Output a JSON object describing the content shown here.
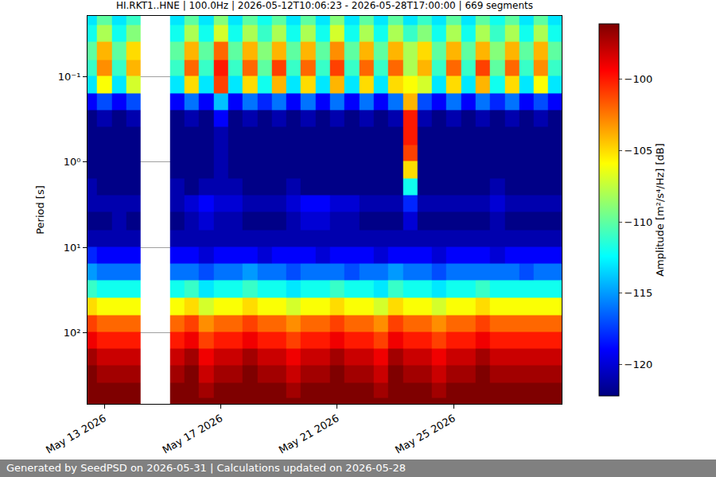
{
  "chart_data": {
    "type": "heatmap",
    "title": "HI.RKT1..HNE | 100.0Hz | 2026-05-12T10:06:23 - 2026-05-28T17:00:00 | 669 segments",
    "y_label": "Period [s]",
    "colorbar_label": "Amplitude [m²/s⁴/Hz] [dB]",
    "color": "jet",
    "log": "y",
    "grid": true,
    "x": [
      "2026-05-12 12:00",
      "2026-05-13 00:00",
      "2026-05-13 12:00",
      "2026-05-14 00:00",
      "2026-05-14 12:00",
      "2026-05-15 00:00",
      "2026-05-15 12:00",
      "2026-05-16 00:00",
      "2026-05-16 12:00",
      "2026-05-17 00:00",
      "2026-05-17 12:00",
      "2026-05-18 00:00",
      "2026-05-18 12:00",
      "2026-05-19 00:00",
      "2026-05-19 12:00",
      "2026-05-20 00:00",
      "2026-05-20 12:00",
      "2026-05-21 00:00",
      "2026-05-21 12:00",
      "2026-05-22 00:00",
      "2026-05-22 12:00",
      "2026-05-23 00:00",
      "2026-05-23 12:00",
      "2026-05-24 00:00",
      "2026-05-24 12:00",
      "2026-05-25 00:00",
      "2026-05-25 12:00",
      "2026-05-26 00:00",
      "2026-05-26 12:00",
      "2026-05-27 00:00",
      "2026-05-27 12:00",
      "2026-05-28 00:00",
      "2026-05-28 12:00"
    ],
    "y": [
      0.02,
      0.03,
      0.05,
      0.08,
      0.12,
      0.2,
      0.3,
      0.5,
      0.8,
      1.2,
      2,
      3,
      5,
      8,
      12,
      20,
      30,
      50,
      80,
      120,
      200,
      300,
      500,
      690
    ],
    "cells": [
      [
        -113,
        -110,
        -113,
        -111,
        null,
        null,
        -113,
        -110,
        -113,
        -109,
        -113,
        -110,
        -112,
        -110,
        -113,
        -110,
        -113,
        -109,
        -113,
        -110,
        -113,
        -110,
        -113,
        -111,
        -113,
        -110,
        -113,
        -110,
        -112,
        -110,
        -113,
        -110,
        -113
      ],
      [
        -112,
        -108,
        -112,
        -109,
        null,
        null,
        -112,
        -108,
        -112,
        -107,
        -112,
        -108,
        -111,
        -108,
        -112,
        -108,
        -112,
        -107,
        -112,
        -108,
        -112,
        -108,
        -111,
        -109,
        -112,
        -108,
        -112,
        -108,
        -111,
        -108,
        -112,
        -108,
        -112
      ],
      [
        -110,
        -104,
        -110,
        -105,
        null,
        null,
        -110,
        -104,
        -110,
        -102,
        -110,
        -104,
        -109,
        -104,
        -110,
        -104,
        -110,
        -103,
        -110,
        -104,
        -110,
        -104,
        -108,
        -105,
        -110,
        -104,
        -110,
        -104,
        -109,
        -104,
        -110,
        -104,
        -110
      ],
      [
        -111,
        -103,
        -111,
        -104,
        null,
        null,
        -111,
        -102,
        -111,
        -100,
        -111,
        -102,
        -110,
        -101,
        -111,
        -102,
        -111,
        -101,
        -111,
        -102,
        -111,
        -102,
        -108,
        -104,
        -111,
        -102,
        -111,
        -101,
        -110,
        -102,
        -111,
        -103,
        -111
      ],
      [
        -113,
        -106,
        -113,
        -107,
        null,
        null,
        -113,
        -105,
        -113,
        -101,
        -113,
        -105,
        -112,
        -104,
        -113,
        -105,
        -113,
        -104,
        -113,
        -105,
        -113,
        -105,
        -106,
        -107,
        -113,
        -105,
        -113,
        -104,
        -112,
        -105,
        -113,
        -106,
        -113
      ],
      [
        -119,
        -117,
        -119,
        -117,
        null,
        null,
        -119,
        -116,
        -119,
        -114,
        -119,
        -116,
        -118,
        -116,
        -119,
        -116,
        -119,
        -116,
        -119,
        -116,
        -119,
        -116,
        -104,
        -117,
        -119,
        -116,
        -119,
        -116,
        -118,
        -116,
        -119,
        -117,
        -119
      ],
      [
        -122,
        -121,
        -122,
        -121,
        null,
        null,
        -122,
        -121,
        -122,
        -119,
        -122,
        -121,
        -122,
        -121,
        -122,
        -121,
        -122,
        -121,
        -122,
        -121,
        -122,
        -121,
        -100,
        -121,
        -122,
        -121,
        -122,
        -121,
        -122,
        -121,
        -122,
        -121,
        -122
      ],
      [
        -122,
        -122,
        -122,
        -122,
        null,
        null,
        -122,
        -122,
        -122,
        -121,
        -122,
        -122,
        -122,
        -122,
        -122,
        -122,
        -122,
        -122,
        -122,
        -122,
        -122,
        -122,
        -100,
        -122,
        -122,
        -122,
        -122,
        -122,
        -122,
        -122,
        -122,
        -122,
        -122
      ],
      [
        -122,
        -122,
        -122,
        -122,
        null,
        null,
        -122,
        -122,
        -122,
        -121,
        -122,
        -122,
        -122,
        -122,
        -122,
        -122,
        -122,
        -122,
        -122,
        -122,
        -122,
        -122,
        -101,
        -122,
        -122,
        -122,
        -122,
        -122,
        -122,
        -122,
        -122,
        -122,
        -122
      ],
      [
        -122,
        -122,
        -122,
        -122,
        null,
        null,
        -122,
        -122,
        -122,
        -121,
        -122,
        -122,
        -122,
        -122,
        -122,
        -122,
        -122,
        -122,
        -122,
        -122,
        -122,
        -122,
        -105,
        -122,
        -122,
        -122,
        -122,
        -122,
        -122,
        -122,
        -122,
        -122,
        -122
      ],
      [
        -121,
        -122,
        -122,
        -122,
        null,
        null,
        -121,
        -122,
        -121,
        -121,
        -121,
        -122,
        -122,
        -122,
        -121,
        -122,
        -122,
        -122,
        -122,
        -122,
        -122,
        -122,
        -112,
        -122,
        -122,
        -122,
        -122,
        -122,
        -121,
        -122,
        -122,
        -122,
        -122
      ],
      [
        -121,
        -121,
        -121,
        -121,
        null,
        null,
        -121,
        -120,
        -119,
        -120,
        -120,
        -121,
        -121,
        -121,
        -120,
        -119,
        -119,
        -120,
        -120,
        -121,
        -121,
        -121,
        -118,
        -121,
        -121,
        -121,
        -121,
        -121,
        -120,
        -121,
        -121,
        -121,
        -121
      ],
      [
        -122,
        -122,
        -121,
        -122,
        null,
        null,
        -122,
        -121,
        -120,
        -121,
        -121,
        -122,
        -122,
        -122,
        -121,
        -120,
        -120,
        -121,
        -121,
        -122,
        -122,
        -122,
        -120,
        -122,
        -122,
        -122,
        -122,
        -122,
        -121,
        -122,
        -122,
        -122,
        -122
      ],
      [
        -121,
        -121,
        -121,
        -121,
        null,
        null,
        -121,
        -121,
        -121,
        -121,
        -121,
        -121,
        -121,
        -121,
        -121,
        -121,
        -121,
        -121,
        -121,
        -121,
        -121,
        -121,
        -121,
        -121,
        -121,
        -121,
        -121,
        -121,
        -121,
        -121,
        -121,
        -121,
        -121
      ],
      [
        -118,
        -119,
        -119,
        -119,
        null,
        null,
        -119,
        -119,
        -120,
        -119,
        -119,
        -119,
        -120,
        -119,
        -119,
        -119,
        -120,
        -119,
        -119,
        -119,
        -120,
        -119,
        -119,
        -119,
        -120,
        -119,
        -119,
        -119,
        -120,
        -119,
        -119,
        -119,
        -119
      ],
      [
        -115,
        -116,
        -116,
        -116,
        null,
        null,
        -116,
        -116,
        -117,
        -116,
        -116,
        -115,
        -116,
        -116,
        -117,
        -116,
        -116,
        -116,
        -117,
        -116,
        -116,
        -115,
        -116,
        -116,
        -117,
        -116,
        -116,
        -116,
        -116,
        -116,
        -117,
        -116,
        -116
      ],
      [
        -111,
        -112,
        -112,
        -112,
        null,
        null,
        -112,
        -111,
        -113,
        -112,
        -112,
        -111,
        -112,
        -112,
        -113,
        -112,
        -112,
        -111,
        -112,
        -112,
        -113,
        -111,
        -112,
        -112,
        -113,
        -112,
        -112,
        -111,
        -112,
        -112,
        -112,
        -112,
        -112
      ],
      [
        -105,
        -106,
        -106,
        -106,
        null,
        null,
        -106,
        -105,
        -107,
        -106,
        -106,
        -105,
        -106,
        -106,
        -107,
        -106,
        -106,
        -105,
        -106,
        -106,
        -107,
        -105,
        -106,
        -106,
        -107,
        -106,
        -106,
        -105,
        -106,
        -106,
        -106,
        -106,
        -106
      ],
      [
        -101,
        -102,
        -102,
        -102,
        null,
        null,
        -102,
        -101,
        -103,
        -102,
        -102,
        -101,
        -102,
        -102,
        -103,
        -102,
        -102,
        -101,
        -102,
        -102,
        -103,
        -101,
        -102,
        -102,
        -103,
        -102,
        -102,
        -101,
        -102,
        -102,
        -102,
        -102,
        -102
      ],
      [
        -99,
        -100,
        -100,
        -100,
        null,
        null,
        -100,
        -99,
        -101,
        -100,
        -100,
        -99,
        -100,
        -100,
        -101,
        -100,
        -100,
        -99,
        -100,
        -100,
        -101,
        -99,
        -100,
        -100,
        -101,
        -100,
        -100,
        -99,
        -100,
        -100,
        -100,
        -100,
        -100
      ],
      [
        -97,
        -98,
        -98,
        -98,
        null,
        null,
        -98,
        -97,
        -99,
        -98,
        -98,
        -97,
        -98,
        -98,
        -99,
        -98,
        -98,
        -97,
        -98,
        -98,
        -99,
        -97,
        -98,
        -98,
        -99,
        -98,
        -98,
        -97,
        -98,
        -98,
        -98,
        -98,
        -98
      ],
      [
        -96,
        -97,
        -97,
        -97,
        null,
        null,
        -97,
        -96,
        -98,
        -97,
        -97,
        -96,
        -97,
        -97,
        -98,
        -97,
        -97,
        -96,
        -97,
        -97,
        -98,
        -96,
        -97,
        -97,
        -98,
        -97,
        -97,
        -96,
        -97,
        -97,
        -97,
        -97,
        -97
      ],
      [
        -95,
        -96,
        -96,
        -96,
        null,
        null,
        -96,
        -95,
        -97,
        -96,
        -96,
        -95,
        -96,
        -96,
        -97,
        -96,
        -96,
        -95,
        -96,
        -96,
        -97,
        -95,
        -96,
        -96,
        -97,
        -96,
        -96,
        -95,
        -96,
        -96,
        -96,
        -96,
        -96
      ],
      [
        -95,
        -96,
        -95,
        -96,
        null,
        null,
        -96,
        -95,
        -96,
        -95,
        -96,
        -95,
        -96,
        -95,
        -96,
        -95,
        -96,
        -95,
        -96,
        -95,
        -96,
        -95,
        -96,
        -95,
        -96,
        -95,
        -96,
        -95,
        -96,
        -95,
        -96,
        -95,
        -96
      ]
    ],
    "xlim": [
      "2026-05-12 10:06:23",
      "2026-05-28 17:00:00"
    ],
    "xticks": [
      {
        "value": "2026-05-13",
        "label": "May 13 2026"
      },
      {
        "value": "2026-05-17",
        "label": "May 17 2026"
      },
      {
        "value": "2026-05-21",
        "label": "May 21 2026"
      },
      {
        "value": "2026-05-25",
        "label": "May 25 2026"
      }
    ],
    "ylim": [
      0.0192,
      690
    ],
    "yticks": [
      {
        "value": 0.1,
        "label": "10⁻¹"
      },
      {
        "value": 1,
        "label": "10⁰"
      },
      {
        "value": 10,
        "label": "10¹"
      },
      {
        "value": 100,
        "label": "10²"
      }
    ],
    "zlim": [
      -122.2,
      -96.1
    ],
    "zticks": [
      -120,
      -115,
      -110,
      -105,
      -100
    ]
  },
  "footer": "Generated by SeedPSD on 2026-05-31 | Calculations updated on 2026-05-28"
}
